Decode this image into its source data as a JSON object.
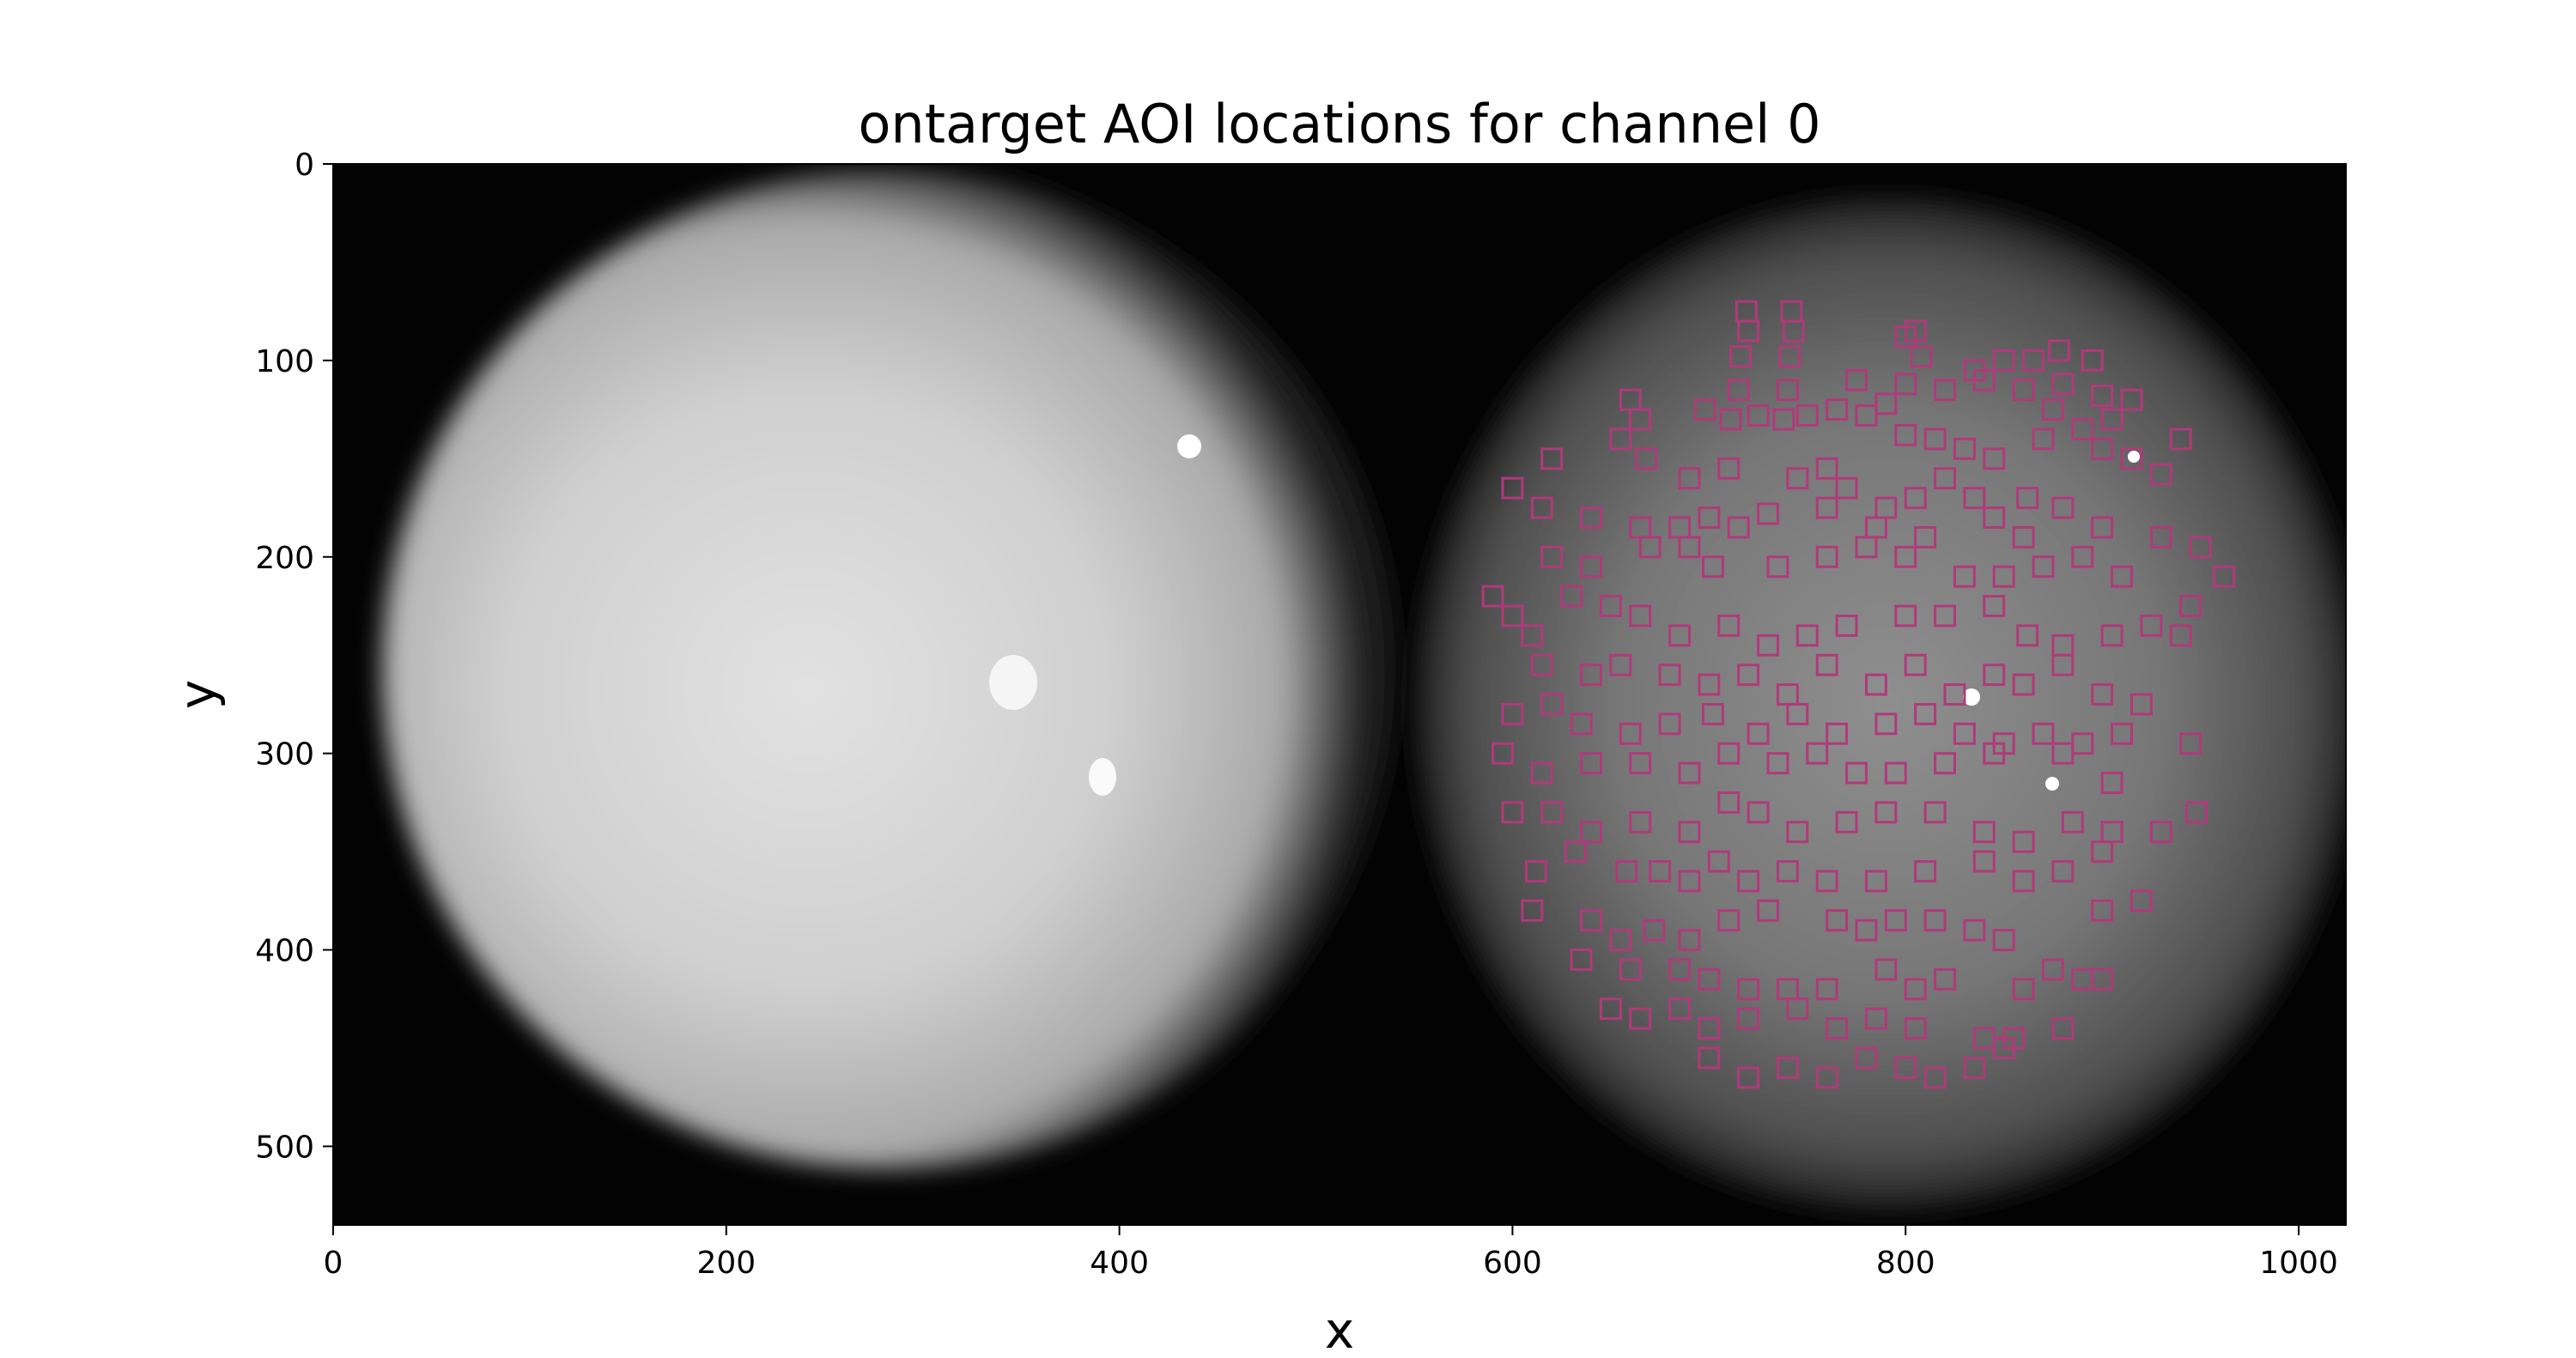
{
  "chart_data": {
    "type": "scatter",
    "title": "ontarget AOI locations for channel 0",
    "xlabel": "x",
    "ylabel": "y",
    "xlim": [
      0,
      1024
    ],
    "ylim": [
      540,
      0
    ],
    "y_inverted": true,
    "xticks": [
      0,
      200,
      400,
      600,
      800,
      1000
    ],
    "yticks": [
      0,
      100,
      200,
      300,
      400,
      500
    ],
    "grid": false,
    "legend": "none",
    "background": "grayscale fluorescence image with two circular fields of view",
    "marker": "square",
    "marker_color": "#b03a7a",
    "series": [
      {
        "values": [
          [
            719,
            75
          ],
          [
            742,
            75
          ],
          [
            720,
            85
          ],
          [
            743,
            85
          ],
          [
            716,
            98
          ],
          [
            741,
            98
          ],
          [
            805,
            85
          ],
          [
            808,
            98
          ],
          [
            800,
            88
          ],
          [
            835,
            105
          ],
          [
            850,
            100
          ],
          [
            865,
            100
          ],
          [
            878,
            95
          ],
          [
            895,
            100
          ],
          [
            715,
            115
          ],
          [
            740,
            115
          ],
          [
            775,
            110
          ],
          [
            800,
            112
          ],
          [
            820,
            115
          ],
          [
            840,
            110
          ],
          [
            860,
            115
          ],
          [
            880,
            112
          ],
          [
            900,
            118
          ],
          [
            915,
            120
          ],
          [
            905,
            130
          ],
          [
            890,
            135
          ],
          [
            875,
            125
          ],
          [
            660,
            120
          ],
          [
            665,
            130
          ],
          [
            698,
            125
          ],
          [
            711,
            130
          ],
          [
            725,
            128
          ],
          [
            738,
            130
          ],
          [
            750,
            128
          ],
          [
            765,
            125
          ],
          [
            780,
            128
          ],
          [
            790,
            122
          ],
          [
            800,
            138
          ],
          [
            815,
            140
          ],
          [
            830,
            145
          ],
          [
            845,
            150
          ],
          [
            870,
            140
          ],
          [
            900,
            145
          ],
          [
            915,
            150
          ],
          [
            930,
            158
          ],
          [
            940,
            140
          ],
          [
            620,
            150
          ],
          [
            655,
            140
          ],
          [
            668,
            150
          ],
          [
            690,
            160
          ],
          [
            710,
            155
          ],
          [
            745,
            160
          ],
          [
            760,
            155
          ],
          [
            770,
            165
          ],
          [
            790,
            175
          ],
          [
            805,
            170
          ],
          [
            820,
            160
          ],
          [
            835,
            170
          ],
          [
            862,
            170
          ],
          [
            880,
            175
          ],
          [
            600,
            165
          ],
          [
            615,
            175
          ],
          [
            640,
            180
          ],
          [
            665,
            185
          ],
          [
            685,
            185
          ],
          [
            700,
            180
          ],
          [
            715,
            185
          ],
          [
            730,
            178
          ],
          [
            760,
            175
          ],
          [
            785,
            185
          ],
          [
            810,
            190
          ],
          [
            845,
            180
          ],
          [
            860,
            190
          ],
          [
            900,
            185
          ],
          [
            930,
            190
          ],
          [
            950,
            195
          ],
          [
            962,
            210
          ],
          [
            620,
            200
          ],
          [
            640,
            205
          ],
          [
            670,
            195
          ],
          [
            690,
            195
          ],
          [
            702,
            205
          ],
          [
            735,
            205
          ],
          [
            760,
            200
          ],
          [
            780,
            195
          ],
          [
            800,
            200
          ],
          [
            830,
            210
          ],
          [
            850,
            210
          ],
          [
            870,
            205
          ],
          [
            890,
            200
          ],
          [
            910,
            210
          ],
          [
            945,
            225
          ],
          [
            590,
            220
          ],
          [
            600,
            230
          ],
          [
            610,
            240
          ],
          [
            630,
            220
          ],
          [
            650,
            225
          ],
          [
            665,
            230
          ],
          [
            685,
            240
          ],
          [
            710,
            235
          ],
          [
            730,
            245
          ],
          [
            750,
            240
          ],
          [
            770,
            235
          ],
          [
            800,
            230
          ],
          [
            820,
            230
          ],
          [
            845,
            225
          ],
          [
            862,
            240
          ],
          [
            880,
            245
          ],
          [
            905,
            240
          ],
          [
            925,
            235
          ],
          [
            940,
            240
          ],
          [
            615,
            255
          ],
          [
            640,
            260
          ],
          [
            655,
            255
          ],
          [
            680,
            260
          ],
          [
            700,
            265
          ],
          [
            720,
            260
          ],
          [
            740,
            270
          ],
          [
            760,
            255
          ],
          [
            785,
            265
          ],
          [
            805,
            255
          ],
          [
            825,
            270
          ],
          [
            845,
            260
          ],
          [
            860,
            265
          ],
          [
            880,
            255
          ],
          [
            900,
            270
          ],
          [
            920,
            275
          ],
          [
            600,
            280
          ],
          [
            620,
            275
          ],
          [
            635,
            285
          ],
          [
            660,
            290
          ],
          [
            680,
            285
          ],
          [
            702,
            280
          ],
          [
            725,
            290
          ],
          [
            745,
            280
          ],
          [
            765,
            290
          ],
          [
            790,
            285
          ],
          [
            810,
            280
          ],
          [
            830,
            290
          ],
          [
            850,
            295
          ],
          [
            870,
            290
          ],
          [
            890,
            295
          ],
          [
            910,
            290
          ],
          [
            945,
            295
          ],
          [
            595,
            300
          ],
          [
            615,
            310
          ],
          [
            640,
            305
          ],
          [
            665,
            305
          ],
          [
            690,
            310
          ],
          [
            710,
            300
          ],
          [
            735,
            305
          ],
          [
            755,
            300
          ],
          [
            775,
            310
          ],
          [
            795,
            310
          ],
          [
            820,
            305
          ],
          [
            845,
            300
          ],
          [
            880,
            300
          ],
          [
            905,
            315
          ],
          [
            600,
            330
          ],
          [
            620,
            330
          ],
          [
            640,
            340
          ],
          [
            665,
            335
          ],
          [
            690,
            340
          ],
          [
            710,
            325
          ],
          [
            725,
            330
          ],
          [
            745,
            340
          ],
          [
            770,
            335
          ],
          [
            790,
            330
          ],
          [
            815,
            330
          ],
          [
            840,
            340
          ],
          [
            860,
            345
          ],
          [
            885,
            335
          ],
          [
            905,
            340
          ],
          [
            930,
            340
          ],
          [
            948,
            330
          ],
          [
            612,
            360
          ],
          [
            632,
            350
          ],
          [
            658,
            360
          ],
          [
            675,
            360
          ],
          [
            690,
            365
          ],
          [
            705,
            355
          ],
          [
            720,
            365
          ],
          [
            740,
            360
          ],
          [
            760,
            365
          ],
          [
            785,
            365
          ],
          [
            810,
            360
          ],
          [
            840,
            355
          ],
          [
            860,
            365
          ],
          [
            880,
            360
          ],
          [
            900,
            350
          ],
          [
            610,
            380
          ],
          [
            640,
            385
          ],
          [
            655,
            395
          ],
          [
            672,
            390
          ],
          [
            690,
            395
          ],
          [
            710,
            385
          ],
          [
            730,
            380
          ],
          [
            765,
            385
          ],
          [
            780,
            390
          ],
          [
            795,
            385
          ],
          [
            815,
            385
          ],
          [
            835,
            390
          ],
          [
            850,
            395
          ],
          [
            900,
            380
          ],
          [
            920,
            375
          ],
          [
            635,
            405
          ],
          [
            660,
            410
          ],
          [
            685,
            410
          ],
          [
            700,
            415
          ],
          [
            720,
            420
          ],
          [
            740,
            420
          ],
          [
            760,
            420
          ],
          [
            790,
            410
          ],
          [
            805,
            420
          ],
          [
            820,
            415
          ],
          [
            860,
            420
          ],
          [
            875,
            410
          ],
          [
            890,
            415
          ],
          [
            900,
            415
          ],
          [
            650,
            430
          ],
          [
            665,
            435
          ],
          [
            685,
            430
          ],
          [
            700,
            440
          ],
          [
            720,
            435
          ],
          [
            745,
            430
          ],
          [
            765,
            440
          ],
          [
            785,
            435
          ],
          [
            805,
            440
          ],
          [
            840,
            445
          ],
          [
            855,
            445
          ],
          [
            880,
            440
          ],
          [
            700,
            455
          ],
          [
            720,
            465
          ],
          [
            740,
            460
          ],
          [
            760,
            465
          ],
          [
            780,
            455
          ],
          [
            800,
            460
          ],
          [
            815,
            465
          ],
          [
            835,
            460
          ],
          [
            850,
            450
          ]
        ]
      }
    ]
  }
}
